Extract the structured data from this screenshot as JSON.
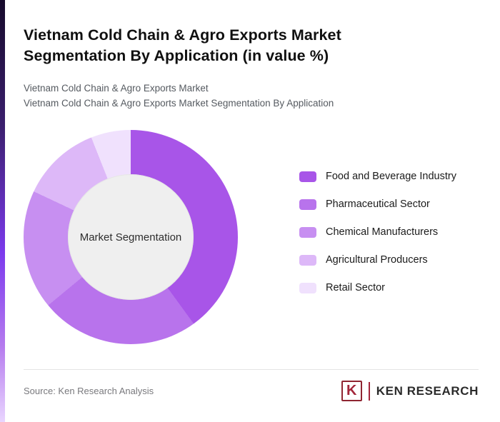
{
  "header": {
    "title": "Vietnam Cold Chain & Agro Exports Market Segmentation By Application (in value %)",
    "subtitle1": "Vietnam Cold Chain & Agro Exports Market",
    "subtitle2": "Vietnam Cold Chain & Agro Exports Market Segmentation By Application"
  },
  "chart_data": {
    "type": "pie",
    "variant": "donut",
    "title": "Vietnam Cold Chain & Agro Exports Market Segmentation By Application (in value %)",
    "center_label": "Market Segmentation",
    "labels": [
      "Food and Beverage Industry",
      "Pharmaceutical Sector",
      "Chemical Manufacturers",
      "Agricultural Producers",
      "Retail Sector"
    ],
    "values": [
      40,
      24,
      18,
      12,
      6
    ],
    "colors": [
      "#a855e8",
      "#b873ec",
      "#c78ff1",
      "#ddb8f8",
      "#f0e1fd"
    ],
    "legend_position": "right",
    "start_angle_deg": 0
  },
  "footer": {
    "source": "Source: Ken Research Analysis",
    "logo_k": "K",
    "logo_text": "KEN RESEARCH"
  }
}
